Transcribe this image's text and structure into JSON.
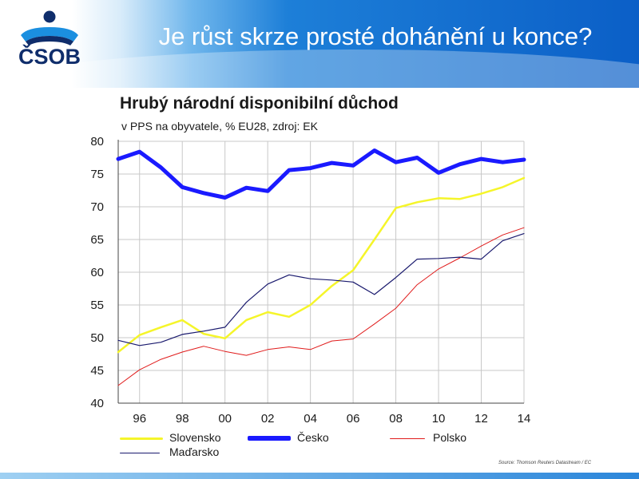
{
  "slide": {
    "title": "Je růst skrze prosté dohánění u konce?",
    "logo_text": "ČSOB",
    "source": "Source: Thomson Reuters Datastream / EC"
  },
  "colors": {
    "slovensko": "#f5f52a",
    "cesko": "#1a1aff",
    "polsko": "#e01b1b",
    "madarsko": "#1a1a6e",
    "brand_blue": "#0b5fc7"
  },
  "chart_data": {
    "type": "line",
    "title": "Hrubý národní disponibilní důchod",
    "subtitle": "v PPS na obyvatele, % EU28, zdroj: EK",
    "x": [
      1995,
      1996,
      1997,
      1998,
      1999,
      2000,
      2001,
      2002,
      2003,
      2004,
      2005,
      2006,
      2007,
      2008,
      2009,
      2010,
      2011,
      2012,
      2013,
      2014
    ],
    "x_tick_labels": [
      "96",
      "98",
      "00",
      "02",
      "04",
      "06",
      "08",
      "10",
      "12",
      "14"
    ],
    "x_tick_years": [
      1996,
      1998,
      2000,
      2002,
      2004,
      2006,
      2008,
      2010,
      2012,
      2014
    ],
    "y_ticks": [
      40,
      45,
      50,
      55,
      60,
      65,
      70,
      75,
      80
    ],
    "ylim": [
      40,
      80
    ],
    "grid": true,
    "legend_position": "bottom",
    "series": [
      {
        "name": "Slovensko",
        "key": "slovensko",
        "values": [
          47.8,
          50.4,
          51.6,
          52.7,
          50.6,
          49.9,
          52.7,
          53.9,
          53.2,
          55.0,
          57.9,
          60.3,
          65.0,
          69.8,
          70.7,
          71.3,
          71.2,
          72.0,
          73.0,
          74.4
        ]
      },
      {
        "name": "Česko",
        "key": "cesko",
        "values": [
          77.3,
          78.4,
          76.0,
          73.0,
          72.1,
          71.4,
          72.9,
          72.4,
          75.6,
          75.9,
          76.7,
          76.3,
          78.6,
          76.8,
          77.5,
          75.2,
          76.5,
          77.3,
          76.8,
          77.2
        ]
      },
      {
        "name": "Polsko",
        "key": "polsko",
        "values": [
          42.7,
          45.1,
          46.7,
          47.8,
          48.7,
          47.9,
          47.3,
          48.2,
          48.6,
          48.2,
          49.5,
          49.8,
          52.1,
          54.5,
          58.1,
          60.5,
          62.2,
          64.0,
          65.7,
          66.8
        ]
      },
      {
        "name": "Maďarsko",
        "key": "madarsko",
        "values": [
          49.6,
          48.8,
          49.3,
          50.5,
          51.0,
          51.6,
          55.4,
          58.2,
          59.6,
          59.0,
          58.8,
          58.5,
          56.6,
          59.2,
          62.0,
          62.1,
          62.3,
          62.0,
          64.8,
          65.9
        ]
      }
    ]
  }
}
